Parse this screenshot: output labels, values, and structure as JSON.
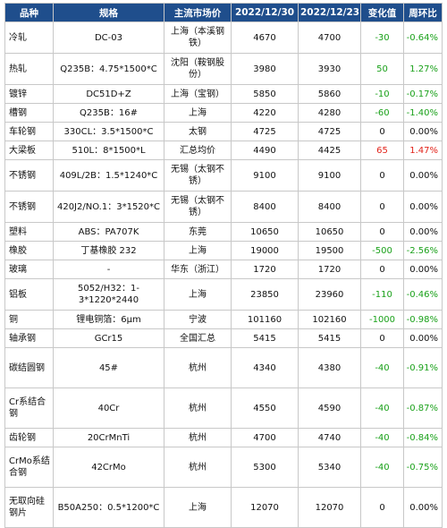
{
  "headers": [
    "品种",
    "规格",
    "主流市场价",
    "2022/12/30",
    "2022/12/23",
    "变化值",
    "周环比"
  ],
  "rows": [
    {
      "name": "冷轧",
      "spec": "DC-03",
      "market": "上海（本溪钢铁）",
      "p1": "4670",
      "p2": "4700",
      "chg": "-30",
      "pct": "-0.64%",
      "dir": "neg",
      "h": "r2"
    },
    {
      "name": "热轧",
      "spec": "Q235B：4.75*1500*C",
      "market": "沈阳（鞍钢股份）",
      "p1": "3980",
      "p2": "3930",
      "chg": "50",
      "pct": "1.27%",
      "dir": "pos",
      "h": "r2"
    },
    {
      "name": "镀锌",
      "spec": "DC51D+Z",
      "market": "上海（宝钢）",
      "p1": "5850",
      "p2": "5860",
      "chg": "-10",
      "pct": "-0.17%",
      "dir": "neg",
      "h": "r1"
    },
    {
      "name": "槽钢",
      "spec": "Q235B：16#",
      "market": "上海",
      "p1": "4220",
      "p2": "4280",
      "chg": "-60",
      "pct": "-1.40%",
      "dir": "neg",
      "h": "r1"
    },
    {
      "name": "车轮钢",
      "spec": "330CL：3.5*1500*C",
      "market": "太钢",
      "p1": "4725",
      "p2": "4725",
      "chg": "0",
      "pct": "0.00%",
      "dir": "zero",
      "h": "r1"
    },
    {
      "name": "大梁板",
      "spec": "510L：8*1500*L",
      "market": "汇总均价",
      "p1": "4490",
      "p2": "4425",
      "chg": "65",
      "pct": "1.47%",
      "dir": "up",
      "h": "r1"
    },
    {
      "name": "不锈钢",
      "spec": "409L/2B：1.5*1240*C",
      "market": "无锡（太钢不锈）",
      "p1": "9100",
      "p2": "9100",
      "chg": "0",
      "pct": "0.00%",
      "dir": "zero",
      "h": "r2"
    },
    {
      "name": "不锈钢",
      "spec": "420J2/NO.1：3*1520*C",
      "market": "无锡（太钢不锈）",
      "p1": "8400",
      "p2": "8400",
      "chg": "0",
      "pct": "0.00%",
      "dir": "zero",
      "h": "r2"
    },
    {
      "name": "塑料",
      "spec": "ABS：PA707K",
      "market": "东莞",
      "p1": "10650",
      "p2": "10650",
      "chg": "0",
      "pct": "0.00%",
      "dir": "zero",
      "h": "r1"
    },
    {
      "name": "橡胶",
      "spec": "丁基橡胶 232",
      "market": "上海",
      "p1": "19000",
      "p2": "19500",
      "chg": "-500",
      "pct": "-2.56%",
      "dir": "neg",
      "h": "r1"
    },
    {
      "name": "玻璃",
      "spec": "-",
      "market": "华东（浙江）",
      "p1": "1720",
      "p2": "1720",
      "chg": "0",
      "pct": "0.00%",
      "dir": "zero",
      "h": "r1"
    },
    {
      "name": "铝板",
      "spec": "5052/H32：1-3*1220*2440",
      "market": "上海",
      "p1": "23850",
      "p2": "23960",
      "chg": "-110",
      "pct": "-0.46%",
      "dir": "neg",
      "h": "r2"
    },
    {
      "name": "铜",
      "spec": "锂电铜箔：6μm",
      "market": "宁波",
      "p1": "101160",
      "p2": "102160",
      "chg": "-1000",
      "pct": "-0.98%",
      "dir": "neg",
      "h": "r1"
    },
    {
      "name": "轴承钢",
      "spec": "GCr15",
      "market": "全国汇总",
      "p1": "5415",
      "p2": "5415",
      "chg": "0",
      "pct": "0.00%",
      "dir": "zero",
      "h": "r1"
    },
    {
      "name": "碳结圆钢",
      "spec": "45#",
      "market": "杭州",
      "p1": "4340",
      "p2": "4380",
      "chg": "-40",
      "pct": "-0.91%",
      "dir": "neg",
      "h": "r3"
    },
    {
      "name": "Cr系结合钢",
      "spec": "40Cr",
      "market": "杭州",
      "p1": "4550",
      "p2": "4590",
      "chg": "-40",
      "pct": "-0.87%",
      "dir": "neg",
      "h": "r3"
    },
    {
      "name": "齿轮钢",
      "spec": "20CrMnTi",
      "market": "杭州",
      "p1": "4700",
      "p2": "4740",
      "chg": "-40",
      "pct": "-0.84%",
      "dir": "neg",
      "h": "r1"
    },
    {
      "name": "CrMo系结合钢",
      "spec": "42CrMo",
      "market": "杭州",
      "p1": "5300",
      "p2": "5340",
      "chg": "-40",
      "pct": "-0.75%",
      "dir": "neg",
      "h": "r3"
    },
    {
      "name": "无取向硅钢片",
      "spec": "B50A250：0.5*1200*C",
      "market": "上海",
      "p1": "12070",
      "p2": "12070",
      "chg": "0",
      "pct": "0.00%",
      "dir": "zero",
      "h": "r3"
    }
  ]
}
